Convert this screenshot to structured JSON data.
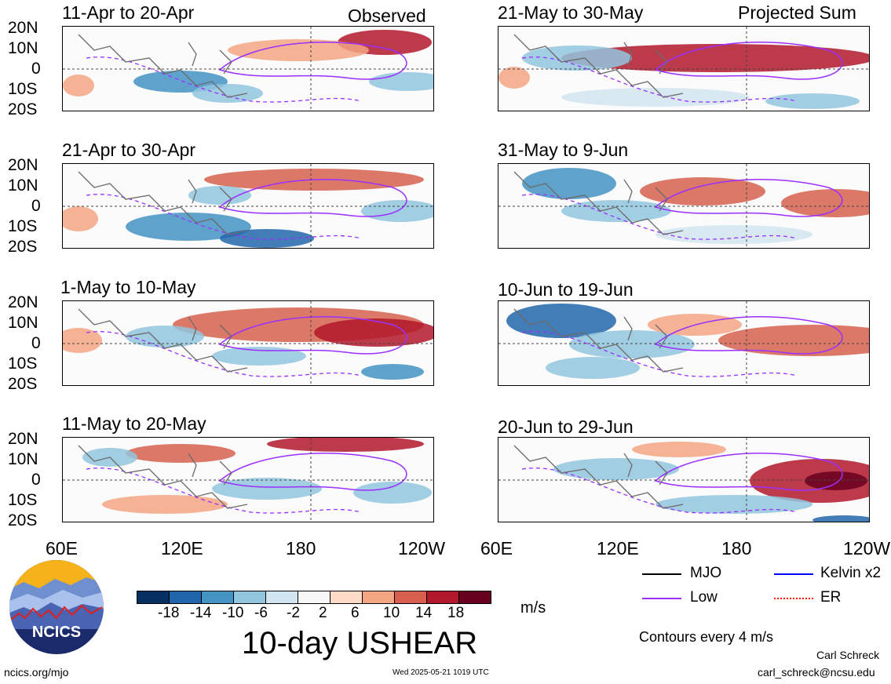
{
  "colors": {
    "accent_red": "#b2182b",
    "accent_blue": "#2166ac",
    "low_contour": "#9b30ff",
    "mjo_line": "#000000",
    "kelvin_line": "#0000ff",
    "er_line": "#ff0000"
  },
  "left_header": {
    "observed_label": "Observed"
  },
  "right_header": {
    "projected_label": "Projected Sum"
  },
  "panels": [
    {
      "title": "11-Apr to 20-Apr"
    },
    {
      "title": "21-Apr to 30-Apr"
    },
    {
      "title": "1-May to 10-May"
    },
    {
      "title": "11-May to 20-May"
    },
    {
      "title": "21-May to 30-May"
    },
    {
      "title": "31-May to 9-Jun"
    },
    {
      "title": "10-Jun to 19-Jun"
    },
    {
      "title": "20-Jun to 29-Jun"
    }
  ],
  "chart_data": {
    "type": "heatmap",
    "title": "10-day USHEAR",
    "units": "m/s",
    "y_ticks": [
      "20N",
      "10N",
      "0",
      "10S",
      "20S"
    ],
    "x_ticks": [
      "60E",
      "120E",
      "180",
      "120W"
    ],
    "x_ticks_right_visible": [
      "60E",
      "120E",
      "180",
      "120W"
    ],
    "colorbar_levels": [
      "-18",
      "-14",
      "-10",
      "-6",
      "-2",
      "2",
      "6",
      "10",
      "14",
      "18"
    ],
    "colorbar_colors": [
      "#053061",
      "#2166ac",
      "#4393c3",
      "#92c5de",
      "#d1e5f0",
      "#f7f7f7",
      "#fddbc7",
      "#f4a582",
      "#d6604d",
      "#b2182b",
      "#67001f"
    ],
    "contour_note": "Contours every 4 m/s",
    "legend": [
      {
        "label": "MJO",
        "color": "#000000",
        "style": "solid"
      },
      {
        "label": "Kelvin x2",
        "color": "#0000ff",
        "style": "solid"
      },
      {
        "label": "Low",
        "color": "#9b30ff",
        "style": "solid"
      },
      {
        "label": "ER",
        "color": "#ff0000",
        "style": "dotted"
      }
    ]
  },
  "footer": {
    "logo_text": "NCICS",
    "url": "ncics.org/mjo",
    "timestamp": "Wed 2025-05-21 1019 UTC",
    "author": "Carl Schreck",
    "email": "carl_schreck@ncsu.edu"
  }
}
